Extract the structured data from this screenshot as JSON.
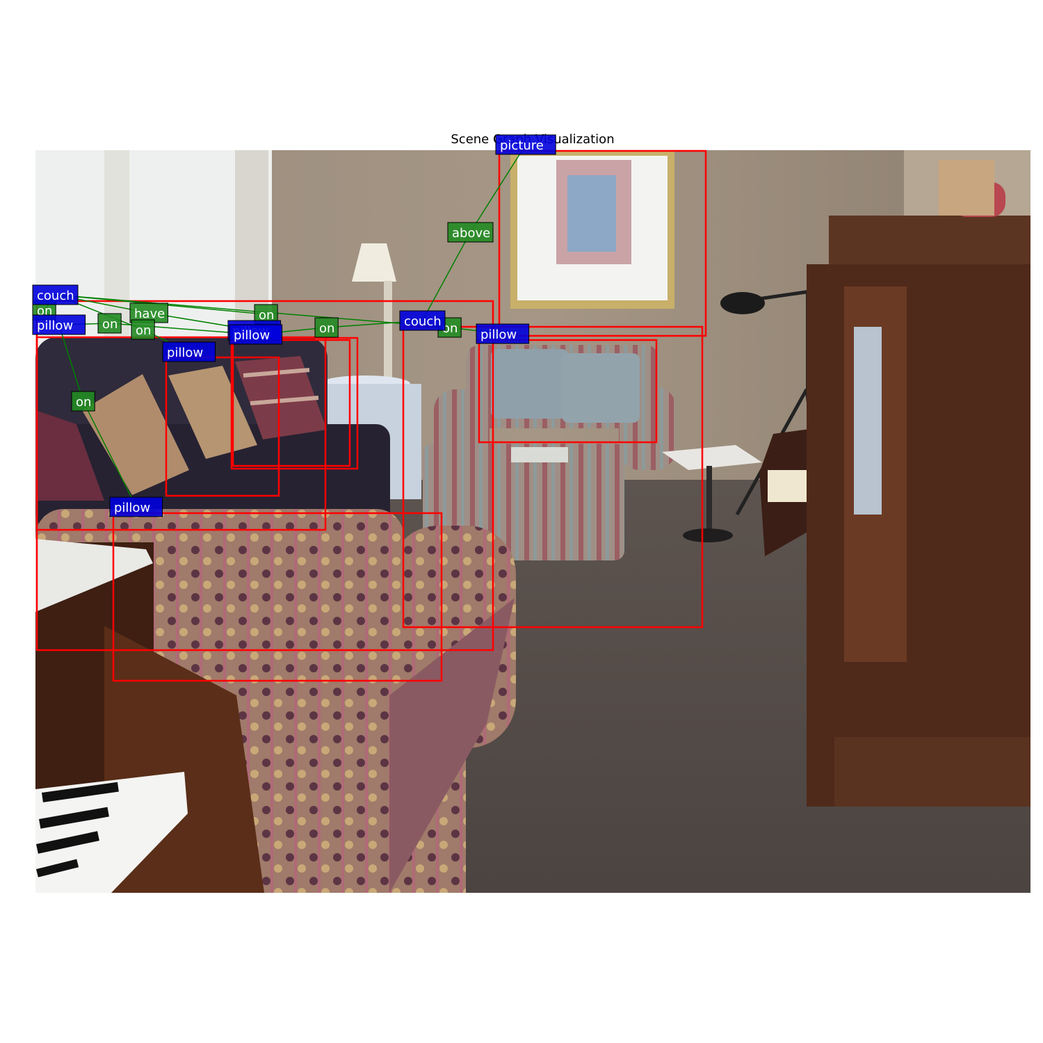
{
  "title": "Scene Graph Visualization",
  "objects": [
    {
      "id": "o_couch1",
      "label": "couch"
    },
    {
      "id": "o_pillow1",
      "label": "pillow"
    },
    {
      "id": "o_pillow2",
      "label": "pillow"
    },
    {
      "id": "o_pillow3",
      "label": "pillow"
    },
    {
      "id": "o_pillow4",
      "label": "pillow"
    },
    {
      "id": "o_pillow5",
      "label": "pillow"
    },
    {
      "id": "o_couch2",
      "label": "couch"
    },
    {
      "id": "o_pillow6",
      "label": "pillow"
    },
    {
      "id": "o_picture",
      "label": "picture"
    }
  ],
  "relations": [
    {
      "id": "r1",
      "label": "on"
    },
    {
      "id": "r2",
      "label": "have"
    },
    {
      "id": "r3",
      "label": "on"
    },
    {
      "id": "r4",
      "label": "on"
    },
    {
      "id": "r5",
      "label": "on"
    },
    {
      "id": "r6",
      "label": "on"
    },
    {
      "id": "r7",
      "label": "on"
    },
    {
      "id": "r8",
      "label": "above"
    },
    {
      "id": "r9",
      "label": "on"
    }
  ],
  "colors": {
    "box": "#ff0000",
    "object_label_bg": "#0000dd",
    "relation_label_bg": "#228b22",
    "edge": "#008000",
    "label_text": "#ffffff"
  }
}
